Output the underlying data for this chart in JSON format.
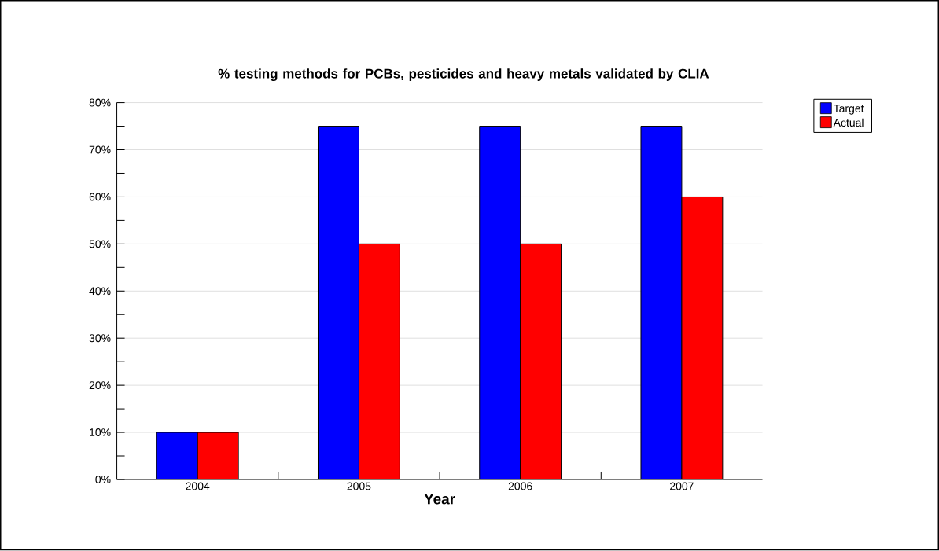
{
  "chart_data": {
    "type": "bar",
    "title": "% testing methods for PCBs, pesticides and heavy metals validated by CLIA",
    "xlabel": "Year",
    "categories": [
      "2004",
      "2005",
      "2006",
      "2007"
    ],
    "series": [
      {
        "name": "Target",
        "color": "#0000ff",
        "values": [
          10,
          75,
          75,
          75
        ]
      },
      {
        "name": "Actual",
        "color": "#ff0000",
        "values": [
          10,
          50,
          50,
          60
        ]
      }
    ],
    "ylim": [
      0,
      80
    ],
    "yticks": [
      {
        "value": 0,
        "label": "0%"
      },
      {
        "value": 10,
        "label": "10%"
      },
      {
        "value": 20,
        "label": "20%"
      },
      {
        "value": 30,
        "label": "30%"
      },
      {
        "value": 40,
        "label": "40%"
      },
      {
        "value": 50,
        "label": "50%"
      },
      {
        "value": 60,
        "label": "60%"
      },
      {
        "value": 70,
        "label": "70%"
      },
      {
        "value": 80,
        "label": "80%"
      }
    ],
    "grid": "y",
    "legend": "top right"
  }
}
